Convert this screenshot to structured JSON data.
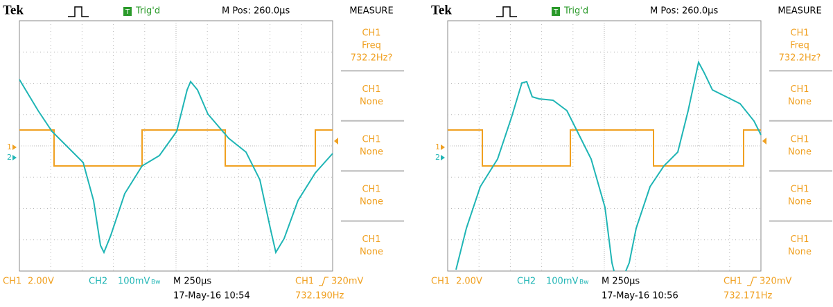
{
  "panels": [
    {
      "header": {
        "brand": "Tek",
        "trig_icon": "T",
        "trigger": "Trig'd",
        "mpos": "M Pos: 260.0µs"
      },
      "markers": [
        "1",
        "2"
      ],
      "measure": {
        "title": "MEASURE",
        "items": [
          [
            "CH1",
            "Freq",
            "732.2Hz?"
          ],
          [
            "CH1",
            "None"
          ],
          [
            "CH1",
            "None"
          ],
          [
            "CH1",
            "None"
          ],
          [
            "CH1",
            "None"
          ]
        ]
      },
      "footer": {
        "ch1": "CH1",
        "ch1_scale": "2.00V",
        "ch2": "CH2",
        "ch2_scale": "100mV",
        "bw": "Bw",
        "timebase": "M 250µs",
        "trig_src": "CH1",
        "trig_level": "320mV",
        "datetime": "17-May-16 10:54",
        "freq": "732.190Hz"
      }
    },
    {
      "header": {
        "brand": "Tek",
        "trig_icon": "T",
        "trigger": "Trig'd",
        "mpos": "M Pos: 260.0µs"
      },
      "markers": [
        "1",
        "2"
      ],
      "measure": {
        "title": "MEASURE",
        "items": [
          [
            "CH1",
            "Freq",
            "732.2Hz?"
          ],
          [
            "CH1",
            "None"
          ],
          [
            "CH1",
            "None"
          ],
          [
            "CH1",
            "None"
          ],
          [
            "CH1",
            "None"
          ]
        ]
      },
      "footer": {
        "ch1": "CH1",
        "ch1_scale": "2.00V",
        "ch2": "CH2",
        "ch2_scale": "100mV",
        "bw": "Bw",
        "timebase": "M 250µs",
        "trig_src": "CH1",
        "trig_level": "320mV",
        "datetime": "17-May-16 10:56",
        "freq": "732.171Hz"
      }
    }
  ]
}
